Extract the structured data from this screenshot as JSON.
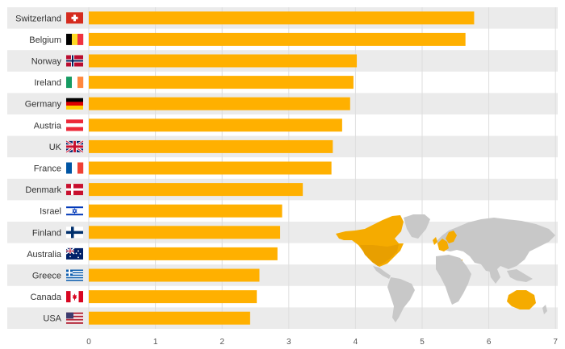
{
  "colors": {
    "bar": "#ffb000",
    "band_shade": "#ebebeb",
    "grid": "#dedede",
    "map_land": "#c8c8c8",
    "map_highlight": "#f5ab00"
  },
  "chart_data": {
    "type": "bar",
    "orientation": "horizontal",
    "categories": [
      "Switzerland",
      "Belgium",
      "Norway",
      "Ireland",
      "Germany",
      "Austria",
      "UK",
      "France",
      "Denmark",
      "Israel",
      "Finland",
      "Australia",
      "Greece",
      "Canada",
      "USA"
    ],
    "values": [
      5.78,
      5.65,
      4.02,
      3.97,
      3.92,
      3.8,
      3.66,
      3.64,
      3.21,
      2.9,
      2.87,
      2.83,
      2.56,
      2.52,
      2.42
    ],
    "xlim": [
      0,
      7
    ],
    "xticks": [
      "0",
      "1",
      "2",
      "3",
      "4",
      "5",
      "6",
      "7"
    ],
    "grid": true,
    "flags": [
      "swiss-flag",
      "belgium-flag",
      "norway-flag",
      "ireland-flag",
      "germany-flag",
      "austria-flag",
      "uk-flag",
      "france-flag",
      "denmark-flag",
      "israel-flag",
      "finland-flag",
      "australia-flag",
      "greece-flag",
      "canada-flag",
      "usa-flag"
    ],
    "decoration": "world-map-highlighting-listed-countries"
  }
}
